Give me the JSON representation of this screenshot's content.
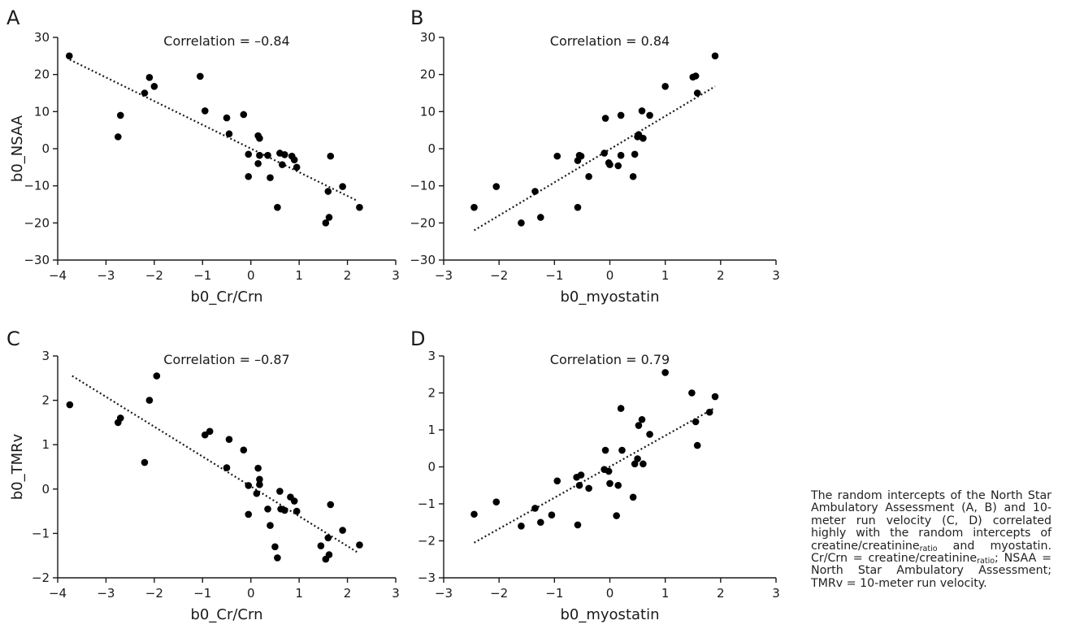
{
  "chart_data": [
    {
      "panel": "A",
      "type": "scatter",
      "annotation": "Correlation = –0.84",
      "xlabel": "b0_Cr/Crn",
      "ylabel": "b0_NSAA",
      "xlim": [
        -4,
        3
      ],
      "ylim": [
        -30,
        30
      ],
      "xticks": [
        -4,
        -3,
        -2,
        -1,
        0,
        1,
        2,
        3
      ],
      "xtick_labels": [
        "−4",
        "−3",
        "−2",
        "−1",
        "0",
        "1",
        "2",
        "3"
      ],
      "yticks": [
        -30,
        -20,
        -10,
        0,
        10,
        20,
        30
      ],
      "ytick_labels": [
        "−30",
        "−20",
        "−10",
        "0",
        "10",
        "20",
        "30"
      ],
      "trendline": [
        [
          -3.75,
          24
        ],
        [
          2.2,
          -14
        ]
      ],
      "points": [
        [
          -3.76,
          25
        ],
        [
          -2.75,
          3.2
        ],
        [
          -2.7,
          9
        ],
        [
          -2.2,
          15
        ],
        [
          -2.1,
          19.2
        ],
        [
          -2.0,
          16.8
        ],
        [
          -1.05,
          19.5
        ],
        [
          -0.95,
          10.2
        ],
        [
          -0.5,
          8.3
        ],
        [
          -0.45,
          4
        ],
        [
          -0.15,
          9.2
        ],
        [
          -0.05,
          -1.5
        ],
        [
          -0.05,
          -7.5
        ],
        [
          0.15,
          -4
        ],
        [
          0.15,
          3.5
        ],
        [
          0.18,
          2.8
        ],
        [
          0.18,
          -1.8
        ],
        [
          0.35,
          -1.8
        ],
        [
          0.4,
          -7.8
        ],
        [
          0.55,
          -15.8
        ],
        [
          0.6,
          -1.2
        ],
        [
          0.65,
          -4.3
        ],
        [
          0.7,
          -1.6
        ],
        [
          0.85,
          -2
        ],
        [
          0.9,
          -3
        ],
        [
          0.95,
          -5
        ],
        [
          1.55,
          -20
        ],
        [
          1.6,
          -11.5
        ],
        [
          1.62,
          -18.5
        ],
        [
          1.65,
          -2
        ],
        [
          1.9,
          -10.2
        ],
        [
          2.25,
          -15.8
        ]
      ]
    },
    {
      "panel": "B",
      "type": "scatter",
      "annotation": "Correlation = 0.84",
      "xlabel": "b0_myostatin",
      "ylabel": "",
      "xlim": [
        -3,
        3
      ],
      "ylim": [
        -30,
        30
      ],
      "xticks": [
        -3,
        -2,
        -1,
        0,
        1,
        2,
        3
      ],
      "xtick_labels": [
        "−3",
        "−2",
        "−1",
        "0",
        "1",
        "2",
        "3"
      ],
      "yticks": [
        -30,
        -20,
        -10,
        0,
        10,
        20,
        30
      ],
      "ytick_labels": [
        "−30",
        "−20",
        "−10",
        "0",
        "10",
        "20",
        "30"
      ],
      "trendline": [
        [
          -2.45,
          -22
        ],
        [
          1.9,
          16.8
        ]
      ],
      "points": [
        [
          -2.45,
          -15.8
        ],
        [
          -2.05,
          -10.2
        ],
        [
          -1.6,
          -20
        ],
        [
          -1.35,
          -11.5
        ],
        [
          -1.25,
          -18.5
        ],
        [
          -0.95,
          -2
        ],
        [
          -0.58,
          -15.8
        ],
        [
          -0.58,
          -3.2
        ],
        [
          -0.55,
          -1.8
        ],
        [
          -0.52,
          -2
        ],
        [
          -0.38,
          -7.5
        ],
        [
          -0.1,
          -1.2
        ],
        [
          -0.08,
          8.2
        ],
        [
          -0.02,
          -3.8
        ],
        [
          0.0,
          -4.3
        ],
        [
          0.15,
          -4.6
        ],
        [
          0.2,
          9.0
        ],
        [
          0.2,
          -1.8
        ],
        [
          0.42,
          -7.5
        ],
        [
          0.45,
          -1.5
        ],
        [
          0.5,
          3.2
        ],
        [
          0.52,
          3.8
        ],
        [
          0.58,
          10.2
        ],
        [
          0.6,
          2.8
        ],
        [
          0.72,
          9.0
        ],
        [
          1.0,
          16.8
        ],
        [
          1.5,
          19.3
        ],
        [
          1.55,
          19.6
        ],
        [
          1.58,
          15
        ],
        [
          1.9,
          25
        ]
      ]
    },
    {
      "panel": "C",
      "type": "scatter",
      "annotation": "Correlation = –0.87",
      "xlabel": "b0_Cr/Crn",
      "ylabel": "b0_TMRv",
      "xlim": [
        -4,
        3
      ],
      "ylim": [
        -2,
        3
      ],
      "xticks": [
        -4,
        -3,
        -2,
        -1,
        0,
        1,
        2,
        3
      ],
      "xtick_labels": [
        "−4",
        "−3",
        "−2",
        "−1",
        "0",
        "1",
        "2",
        "3"
      ],
      "yticks": [
        -2,
        -1,
        0,
        1,
        2,
        3
      ],
      "ytick_labels": [
        "−2",
        "−1",
        "0",
        "1",
        "2",
        "3"
      ],
      "trendline": [
        [
          -3.7,
          2.55
        ],
        [
          2.2,
          -1.42
        ]
      ],
      "points": [
        [
          -3.75,
          1.9
        ],
        [
          -2.75,
          1.5
        ],
        [
          -2.7,
          1.6
        ],
        [
          -2.2,
          0.6
        ],
        [
          -2.1,
          2.0
        ],
        [
          -1.95,
          2.55
        ],
        [
          -0.95,
          1.22
        ],
        [
          -0.85,
          1.3
        ],
        [
          -0.45,
          1.12
        ],
        [
          -0.5,
          0.48
        ],
        [
          -0.15,
          0.88
        ],
        [
          -0.05,
          0.08
        ],
        [
          -0.05,
          -0.57
        ],
        [
          0.12,
          -0.1
        ],
        [
          0.15,
          0.47
        ],
        [
          0.18,
          0.22
        ],
        [
          0.18,
          0.1
        ],
        [
          0.35,
          -0.45
        ],
        [
          0.4,
          -0.82
        ],
        [
          0.5,
          -1.3
        ],
        [
          0.55,
          -1.55
        ],
        [
          0.6,
          -0.05
        ],
        [
          0.62,
          -0.45
        ],
        [
          0.7,
          -0.48
        ],
        [
          0.82,
          -0.18
        ],
        [
          0.9,
          -0.27
        ],
        [
          0.95,
          -0.5
        ],
        [
          1.45,
          -1.28
        ],
        [
          1.55,
          -1.58
        ],
        [
          1.6,
          -1.1
        ],
        [
          1.62,
          -1.48
        ],
        [
          1.65,
          -0.35
        ],
        [
          1.9,
          -0.93
        ],
        [
          2.25,
          -1.26
        ]
      ]
    },
    {
      "panel": "D",
      "type": "scatter",
      "annotation": "Correlation = 0.79",
      "xlabel": "b0_myostatin",
      "ylabel": "",
      "xlim": [
        -3,
        3
      ],
      "ylim": [
        -3,
        3
      ],
      "xticks": [
        -3,
        -2,
        -1,
        0,
        1,
        2,
        3
      ],
      "xtick_labels": [
        "−3",
        "−2",
        "−1",
        "0",
        "1",
        "2",
        "3"
      ],
      "yticks": [
        -3,
        -2,
        -1,
        0,
        1,
        2,
        3
      ],
      "ytick_labels": [
        "−3",
        "−2",
        "−1",
        "0",
        "1",
        "2",
        "3"
      ],
      "trendline": [
        [
          -2.45,
          -2.05
        ],
        [
          1.9,
          1.6
        ]
      ],
      "points": [
        [
          -2.45,
          -1.28
        ],
        [
          -2.05,
          -0.95
        ],
        [
          -1.6,
          -1.6
        ],
        [
          -1.35,
          -1.12
        ],
        [
          -1.25,
          -1.5
        ],
        [
          -1.05,
          -1.3
        ],
        [
          -0.95,
          -0.38
        ],
        [
          -0.6,
          -0.28
        ],
        [
          -0.58,
          -1.57
        ],
        [
          -0.55,
          -0.5
        ],
        [
          -0.52,
          -0.22
        ],
        [
          -0.38,
          -0.58
        ],
        [
          -0.1,
          -0.07
        ],
        [
          -0.08,
          0.45
        ],
        [
          -0.02,
          -0.12
        ],
        [
          0.0,
          -0.45
        ],
        [
          0.12,
          -1.32
        ],
        [
          0.15,
          -0.5
        ],
        [
          0.2,
          1.58
        ],
        [
          0.22,
          0.45
        ],
        [
          0.42,
          -0.82
        ],
        [
          0.45,
          0.08
        ],
        [
          0.5,
          0.22
        ],
        [
          0.52,
          1.12
        ],
        [
          0.58,
          1.28
        ],
        [
          0.6,
          0.08
        ],
        [
          0.72,
          0.88
        ],
        [
          1.0,
          2.55
        ],
        [
          1.48,
          2.0
        ],
        [
          1.55,
          1.22
        ],
        [
          1.58,
          0.58
        ],
        [
          1.8,
          1.48
        ],
        [
          1.9,
          1.9
        ]
      ]
    }
  ],
  "caption": {
    "line1": "The random intercepts of the North Star Ambulatory Assessment (A, B) and 10-meter run velocity (C, D) correlated highly with the random intercepts of creatine/creatinine",
    "sub1": "ratio",
    "line2": " and myostatin. Cr/Crn = creatine/creatinine",
    "sub2": "ratio",
    "line3": "; NSAA = North Star Ambulatory Assessment; TMRv = 10-meter run velocity."
  },
  "colors": {
    "points": "#000000",
    "axes": "#1a1a1a",
    "trendline": "#1a1a1a"
  }
}
